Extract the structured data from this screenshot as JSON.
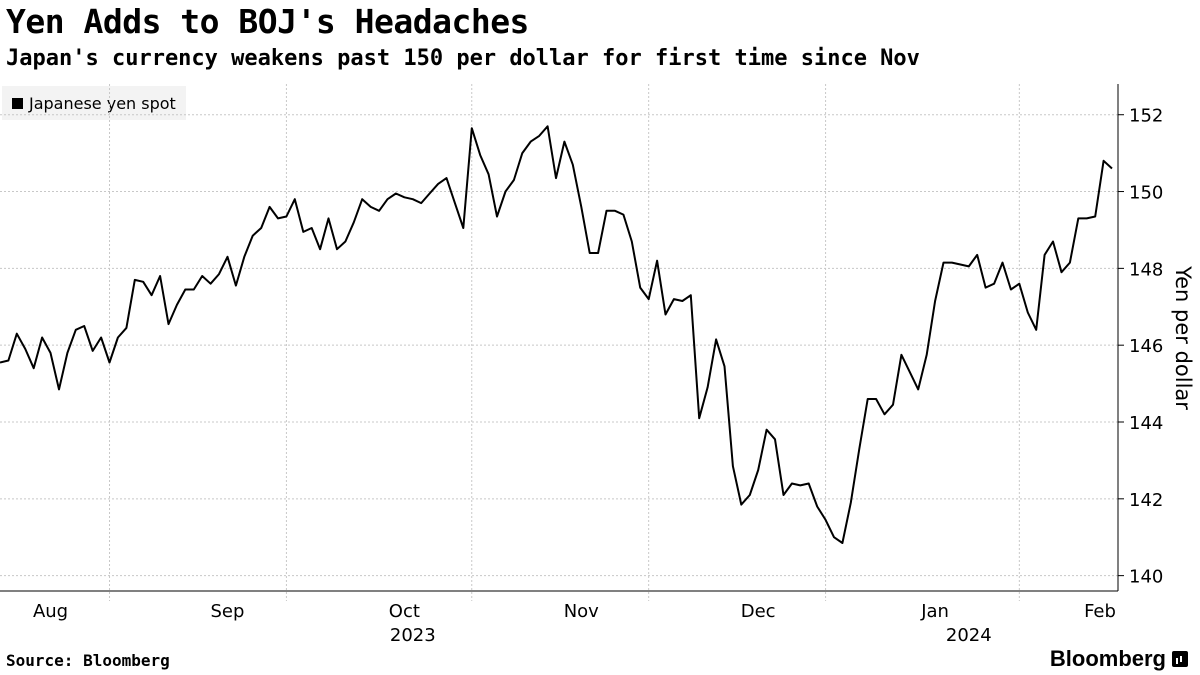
{
  "header": {
    "title": "Yen Adds to BOJ's Headaches",
    "subtitle": "Japan's currency weakens past 150 per dollar for first time since Nov"
  },
  "footer": {
    "source": "Source: Bloomberg",
    "brand": "Bloomberg"
  },
  "chart_data": {
    "type": "line",
    "title": "Yen Adds to BOJ's Headaches",
    "subtitle": "Japan's currency weakens past 150 per dollar for first time since Nov",
    "xlabel": "",
    "ylabel": "Yen per dollar",
    "ylim": [
      139.6,
      152.8
    ],
    "yticks": [
      140,
      142,
      144,
      146,
      148,
      150,
      152
    ],
    "y_axis_side": "right",
    "grid": true,
    "legend_position": "top-left",
    "x_range_index": [
      0,
      132
    ],
    "month_ticks": [
      {
        "label": "Aug",
        "index": 6
      },
      {
        "label": "Sep",
        "index": 27
      },
      {
        "label": "Oct",
        "index": 48
      },
      {
        "label": "Nov",
        "index": 69
      },
      {
        "label": "Dec",
        "index": 90
      },
      {
        "label": "Jan",
        "index": 111
      },
      {
        "label": "Feb",
        "index": 132
      }
    ],
    "month_boundaries": [
      13,
      34,
      56,
      77,
      98,
      121
    ],
    "year_labels": [
      {
        "label": "2023",
        "index": 49
      },
      {
        "label": "2024",
        "index": 115
      }
    ],
    "series": [
      {
        "name": "Japanese yen spot",
        "color": "#000000",
        "start_index": 0,
        "values": [
          145.55,
          145.6,
          146.3,
          145.9,
          145.4,
          146.2,
          145.8,
          144.85,
          145.8,
          146.4,
          146.5,
          145.85,
          146.2,
          145.55,
          146.2,
          146.45,
          147.7,
          147.65,
          147.3,
          147.8,
          146.55,
          147.05,
          147.45,
          147.45,
          147.8,
          147.6,
          147.85,
          148.3,
          147.55,
          148.3,
          148.85,
          149.05,
          149.6,
          149.3,
          149.35,
          149.8,
          148.95,
          149.05,
          148.5,
          149.3,
          148.5,
          148.7,
          149.2,
          149.8,
          149.6,
          149.5,
          149.8,
          149.95,
          149.85,
          149.8,
          149.7,
          149.95,
          150.2,
          150.35,
          149.7,
          149.05,
          151.65,
          150.95,
          150.45,
          149.35,
          150.0,
          150.3,
          151.0,
          151.3,
          151.45,
          151.7,
          150.35,
          151.3,
          150.7,
          149.6,
          148.4,
          148.4,
          149.5,
          149.5,
          149.4,
          148.7,
          147.5,
          147.2,
          148.2,
          146.8,
          147.2,
          147.15,
          147.3,
          144.1,
          144.9,
          146.15,
          145.45,
          142.85,
          141.85,
          142.1,
          142.75,
          143.8,
          143.55,
          142.1,
          142.4,
          142.35,
          142.4,
          141.8,
          141.45,
          141.0,
          140.85,
          141.9,
          143.3,
          144.6,
          144.6,
          144.2,
          144.45,
          145.75,
          145.3,
          144.85,
          145.75,
          147.15,
          148.15,
          148.15,
          148.1,
          148.05,
          148.35,
          147.5,
          147.6,
          148.15,
          147.45,
          147.6,
          146.85,
          146.4,
          148.35,
          148.7,
          147.9,
          148.15,
          149.3,
          149.3,
          149.35,
          150.8,
          150.6
        ]
      }
    ]
  }
}
